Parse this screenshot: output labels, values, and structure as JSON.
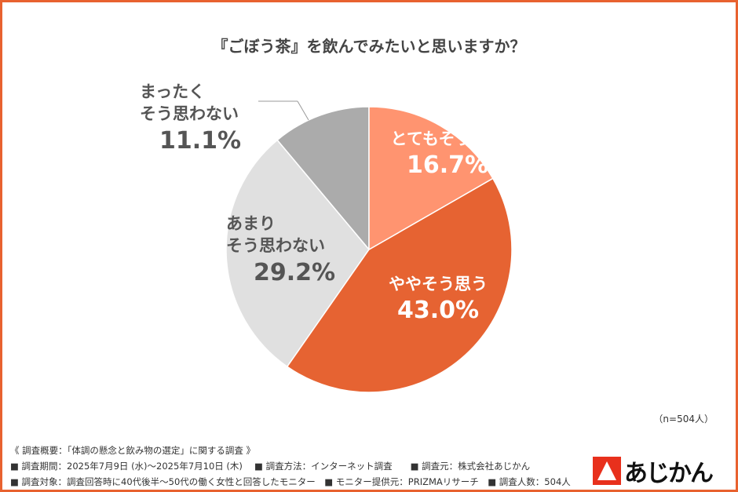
{
  "chart_data": {
    "type": "pie",
    "title": "『ごぼう茶』を飲んでみたいと思いますか？",
    "slices": [
      {
        "label": "とてもそう思う",
        "value": 16.7,
        "display": "16.7%",
        "color": "#FF9470"
      },
      {
        "label": "ややそう思う",
        "value": 43.0,
        "display": "43.0%",
        "color": "#E66332"
      },
      {
        "label": "あまりそう思わない",
        "label_lines": [
          "あまり",
          "そう思わない"
        ],
        "value": 29.2,
        "display": "29.2%",
        "color": "#E0E0E0"
      },
      {
        "label": "まったくそう思わない",
        "label_lines": [
          "まったく",
          "そう思わない"
        ],
        "value": 11.1,
        "display": "11.1%",
        "color": "#ABABAB"
      }
    ],
    "sample_note": "（n=504人）"
  },
  "footer": {
    "line1": "《 調査概要：「体調の懸念と飲み物の選定」に関する調査 》",
    "line2": "■ 調査期間：2025年7月9日 (水)〜2025年7月10日 (木)　 ■ 調査方法：インターネット調査　　■ 調査元：株式会社あじかん",
    "line3": "■ 調査対象：調査回答時に40代後半〜50代の働く女性と回答したモニター　■ モニター提供元：PRIZMAリサーチ　■ 調査人数：504人"
  },
  "logo": {
    "text": "あじかん",
    "color": "#E8301C"
  }
}
